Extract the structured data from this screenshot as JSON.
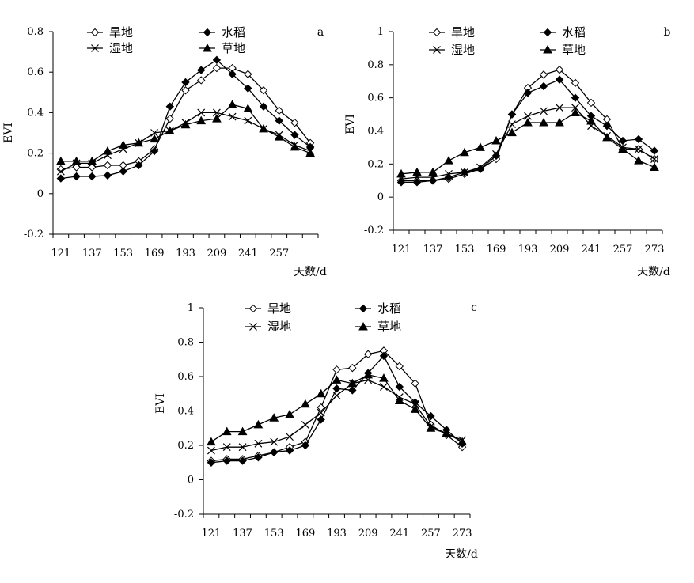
{
  "chart_data": [
    {
      "type": "line",
      "panel_label": "a",
      "xlabel": "天数/d",
      "ylabel": "EVI",
      "x_tick_labels": [
        "121",
        "137",
        "153",
        "169",
        "193",
        "209",
        "241",
        "257"
      ],
      "y_ticks": [
        "-0.2",
        "0",
        "0.2",
        "0.4",
        "0.6",
        "0.8"
      ],
      "ylim": [
        -0.2,
        0.8
      ],
      "legend_position": "top",
      "series": [
        {
          "name": "旱地",
          "marker": "open-diamond",
          "values": [
            0.12,
            0.13,
            0.13,
            0.14,
            0.14,
            0.16,
            0.22,
            0.37,
            0.51,
            0.56,
            0.62,
            0.62,
            0.59,
            0.51,
            0.41,
            0.35,
            0.25
          ]
        },
        {
          "name": "水稻",
          "marker": "filled-diamond",
          "values": [
            0.075,
            0.085,
            0.085,
            0.09,
            0.11,
            0.14,
            0.21,
            0.43,
            0.55,
            0.61,
            0.66,
            0.59,
            0.52,
            0.43,
            0.36,
            0.29,
            0.23
          ]
        },
        {
          "name": "湿地",
          "marker": "cross",
          "values": [
            0.11,
            0.15,
            0.15,
            0.19,
            0.22,
            0.25,
            0.3,
            0.31,
            0.35,
            0.4,
            0.4,
            0.38,
            0.36,
            0.32,
            0.29,
            0.24,
            0.21
          ]
        },
        {
          "name": "草地",
          "marker": "filled-triangle",
          "values": [
            0.16,
            0.16,
            0.16,
            0.21,
            0.24,
            0.25,
            0.27,
            0.31,
            0.34,
            0.36,
            0.37,
            0.44,
            0.42,
            0.32,
            0.28,
            0.23,
            0.2
          ]
        }
      ]
    },
    {
      "type": "line",
      "panel_label": "b",
      "xlabel": "天数/d",
      "ylabel": "EVI",
      "x_tick_labels": [
        "121",
        "137",
        "153",
        "169",
        "193",
        "209",
        "241",
        "257",
        "273"
      ],
      "y_ticks": [
        "-0.2",
        "0",
        "0.2",
        "0.4",
        "0.6",
        "0.8",
        "1"
      ],
      "ylim": [
        -0.2,
        1.0
      ],
      "legend_position": "top",
      "series": [
        {
          "name": "旱地",
          "marker": "open-diamond",
          "values": [
            0.1,
            0.1,
            0.1,
            0.11,
            0.14,
            0.17,
            0.23,
            0.5,
            0.66,
            0.74,
            0.77,
            0.69,
            0.57,
            0.47,
            0.29,
            0.29,
            0.23
          ]
        },
        {
          "name": "水稻",
          "marker": "filled-diamond",
          "values": [
            0.09,
            0.09,
            0.1,
            0.12,
            0.15,
            0.17,
            0.25,
            0.5,
            0.63,
            0.67,
            0.71,
            0.6,
            0.49,
            0.43,
            0.34,
            0.35,
            0.28
          ]
        },
        {
          "name": "湿地",
          "marker": "cross",
          "values": [
            0.11,
            0.12,
            0.12,
            0.14,
            0.15,
            0.18,
            0.26,
            0.44,
            0.49,
            0.52,
            0.54,
            0.54,
            0.43,
            0.37,
            0.3,
            0.29,
            0.23
          ]
        },
        {
          "name": "草地",
          "marker": "filled-triangle",
          "values": [
            0.14,
            0.15,
            0.15,
            0.22,
            0.27,
            0.3,
            0.34,
            0.39,
            0.45,
            0.45,
            0.45,
            0.51,
            0.46,
            0.36,
            0.29,
            0.22,
            0.18
          ]
        }
      ]
    },
    {
      "type": "line",
      "panel_label": "c",
      "xlabel": "天数/d",
      "ylabel": "EVI",
      "x_tick_labels": [
        "121",
        "137",
        "153",
        "169",
        "193",
        "209",
        "241",
        "257",
        "273"
      ],
      "y_ticks": [
        "-0.2",
        "0",
        "0.2",
        "0.4",
        "0.6",
        "0.8",
        "1"
      ],
      "ylim": [
        -0.2,
        1.0
      ],
      "legend_position": "top",
      "series": [
        {
          "name": "旱地",
          "marker": "open-diamond",
          "values": [
            0.11,
            0.12,
            0.12,
            0.14,
            0.16,
            0.19,
            0.22,
            0.42,
            0.64,
            0.65,
            0.73,
            0.75,
            0.66,
            0.56,
            0.32,
            0.26,
            0.19
          ]
        },
        {
          "name": "水稻",
          "marker": "filled-diamond",
          "values": [
            0.1,
            0.11,
            0.11,
            0.13,
            0.16,
            0.17,
            0.2,
            0.35,
            0.53,
            0.52,
            0.62,
            0.72,
            0.54,
            0.45,
            0.37,
            0.29,
            0.21
          ]
        },
        {
          "name": "湿地",
          "marker": "cross",
          "values": [
            0.17,
            0.19,
            0.19,
            0.21,
            0.22,
            0.25,
            0.32,
            0.39,
            0.49,
            0.56,
            0.58,
            0.54,
            0.48,
            0.44,
            0.31,
            0.27,
            0.23
          ]
        },
        {
          "name": "草地",
          "marker": "filled-triangle",
          "values": [
            0.22,
            0.28,
            0.28,
            0.32,
            0.36,
            0.38,
            0.44,
            0.5,
            0.58,
            0.56,
            0.61,
            0.59,
            0.46,
            0.41,
            0.3,
            0.27,
            0.22
          ]
        }
      ]
    }
  ]
}
